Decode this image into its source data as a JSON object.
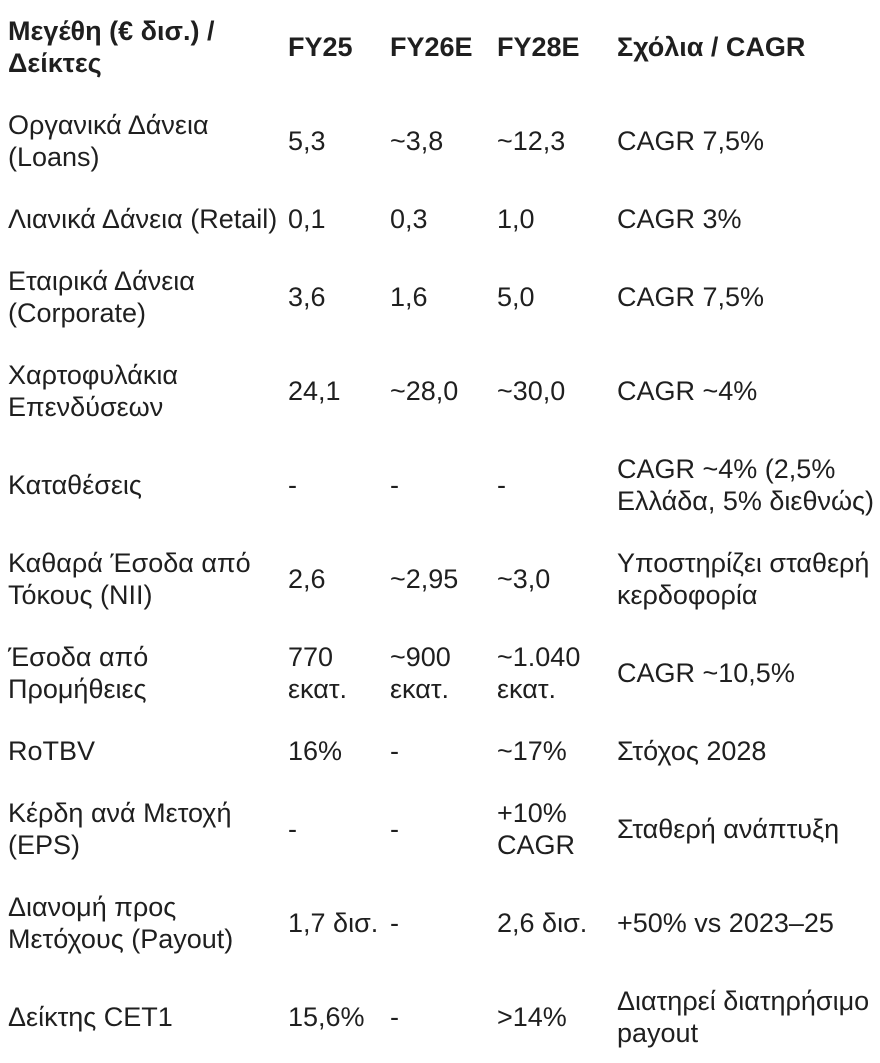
{
  "page": {
    "background_color": "#ffffff",
    "text_color": "#1f1f1f"
  },
  "chart_data": {
    "type": "table",
    "title": "",
    "legend": "none",
    "grid": "off",
    "columns": [
      "Μεγέθη (€ δισ.) / Δείκτες",
      "FY25",
      "FY26E",
      "FY28E",
      "Σχόλια / CAGR"
    ],
    "rows": [
      {
        "label": "Οργανικά Δάνεια (Loans)",
        "fy25": "5,3",
        "fy26e": "~3,8",
        "fy28e": "~12,3",
        "comment": "CAGR 7,5%"
      },
      {
        "label": "Λιανικά Δάνεια (Retail)",
        "fy25": "0,1",
        "fy26e": "0,3",
        "fy28e": "1,0",
        "comment": "CAGR 3%"
      },
      {
        "label": "Εταιρικά Δάνεια (Corporate)",
        "fy25": "3,6",
        "fy26e": "1,6",
        "fy28e": "5,0",
        "comment": "CAGR 7,5%"
      },
      {
        "label": "Χαρτοφυλάκια Επενδύσεων",
        "fy25": "24,1",
        "fy26e": "~28,0",
        "fy28e": "~30,0",
        "comment": "CAGR ~4%"
      },
      {
        "label": "Καταθέσεις",
        "fy25": "-",
        "fy26e": "-",
        "fy28e": "-",
        "comment": "CAGR ~4% (2,5% Ελλάδα, 5% διεθνώς)"
      },
      {
        "label": "Καθαρά Έσοδα από Τόκους (NII)",
        "fy25": "2,6",
        "fy26e": "~2,95",
        "fy28e": "~3,0",
        "comment": "Υποστηρίζει σταθερή κερδοφορία"
      },
      {
        "label": "Έσοδα από Προμήθειες",
        "fy25": "770 εκατ.",
        "fy26e": "~900 εκατ.",
        "fy28e": "~1.040 εκατ.",
        "comment": "CAGR ~10,5%"
      },
      {
        "label": "RoTBV",
        "fy25": "16%",
        "fy26e": "-",
        "fy28e": "~17%",
        "comment": "Στόχος 2028"
      },
      {
        "label": "Κέρδη ανά Μετοχή (EPS)",
        "fy25": "-",
        "fy26e": "-",
        "fy28e": "+10% CAGR",
        "comment": "Σταθερή ανάπτυξη"
      },
      {
        "label": "Διανομή προς Μετόχους (Payout)",
        "fy25": "1,7 δισ.",
        "fy26e": "-",
        "fy28e": "2,6 δισ.",
        "comment": "+50% vs 2023–25"
      },
      {
        "label": "Δείκτης CET1",
        "fy25": "15,6%",
        "fy26e": "-",
        "fy28e": ">14%",
        "comment": "Διατηρεί διατηρήσιμο payout"
      }
    ]
  }
}
